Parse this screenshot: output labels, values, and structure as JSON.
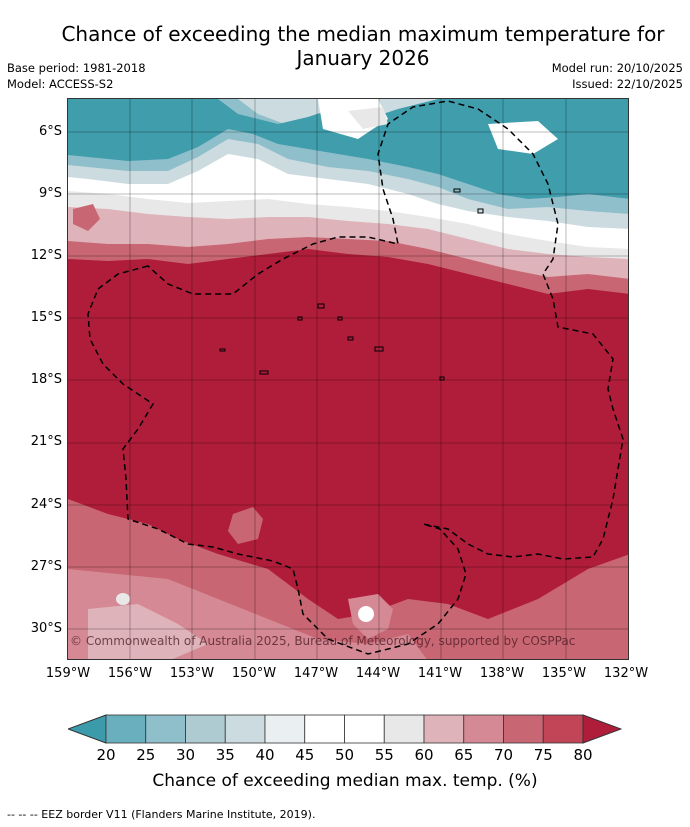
{
  "title_line1": "Chance of exceeding the median maximum temperature for",
  "title_line2": "January 2026",
  "base_period": "Base period: 1981-2018",
  "model": "Model: ACCESS-S2",
  "model_run": "Model run: 20/10/2025",
  "issued": "Issued: 22/10/2025",
  "lat_labels": [
    "6°S",
    "9°S",
    "12°S",
    "15°S",
    "18°S",
    "21°S",
    "24°S",
    "27°S",
    "30°S"
  ],
  "lon_labels": [
    "159°W",
    "156°W",
    "153°W",
    "150°W",
    "147°W",
    "144°W",
    "141°W",
    "138°W",
    "135°W",
    "132°W"
  ],
  "copyright": "© Commonwealth of Australia 2025, Bureau of Meteorology, supported by COSPPac",
  "colorbar": {
    "ticks": [
      "20",
      "25",
      "30",
      "35",
      "40",
      "45",
      "50",
      "55",
      "60",
      "65",
      "70",
      "75",
      "80"
    ],
    "colors": [
      "#3b9bab",
      "#6aafbd",
      "#8fbfca",
      "#afcbd2",
      "#ccdbe0",
      "#eaf0f2",
      "#ffffff",
      "#ffffff",
      "#e8e8e8",
      "#dfb3ba",
      "#d48994",
      "#c86673",
      "#c14556",
      "#b01d3b"
    ],
    "label": "Chance of exceeding median max. temp. (%)"
  },
  "footnote": "-- -- -- EEZ border V11 (Flanders Marine Institute, 2019).",
  "colors": {
    "high": "#b01d3b",
    "mid_high": "#c86673",
    "low": "#3f9dac"
  }
}
